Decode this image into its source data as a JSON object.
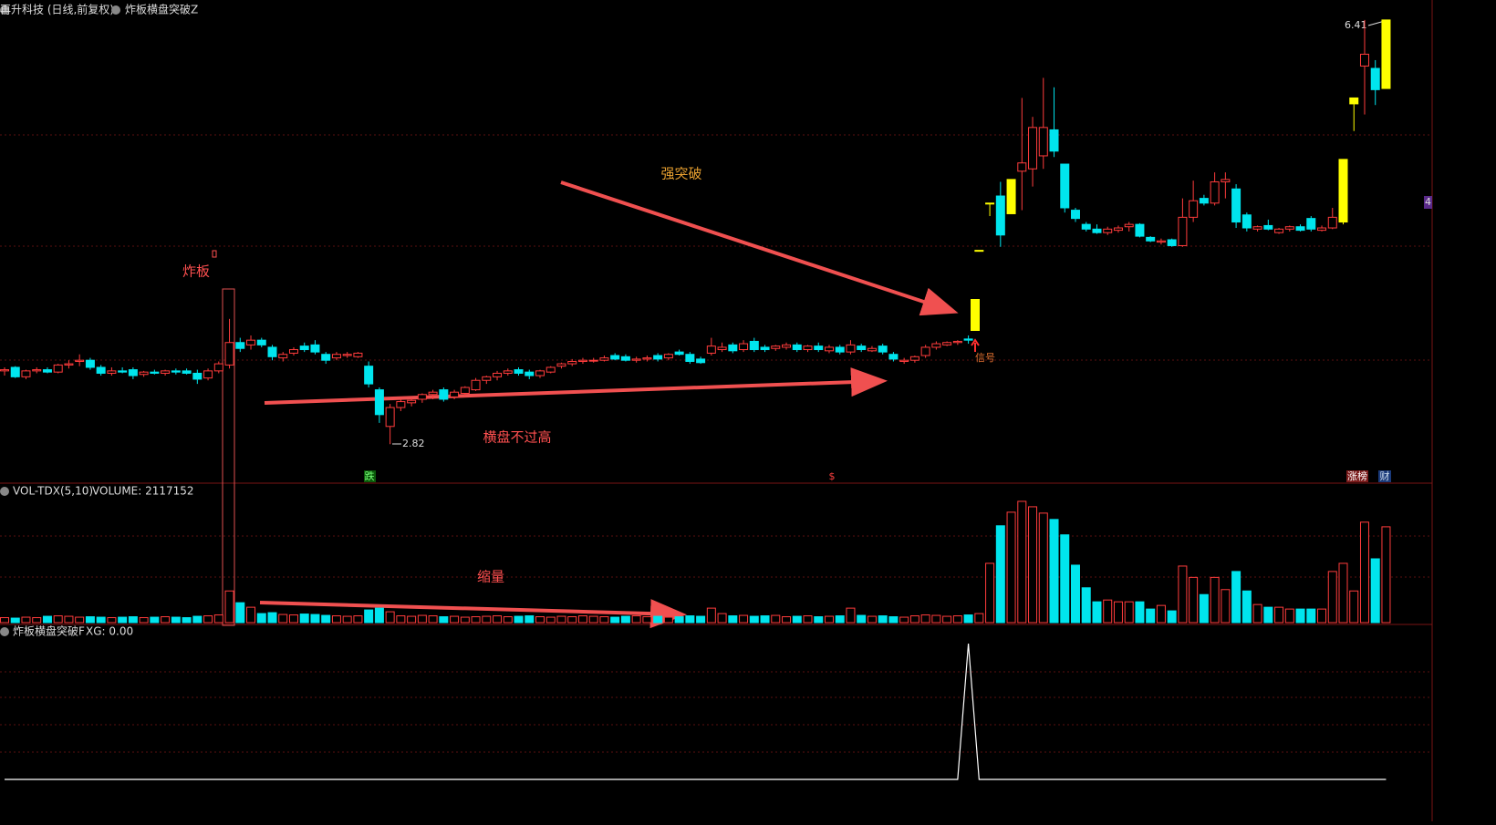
{
  "chart_data": [
    {
      "type": "candlestick",
      "title": "再升科技 (日线,前复权)",
      "indicator": "炸板横盘突破Z",
      "up_color": "#ff3c3c",
      "down_color": "#00e5ee",
      "limit_color": "#ffff00",
      "limit_days": [
        91,
        92,
        94,
        125,
        126,
        129
      ],
      "ylim": [
        2.49,
        6.44
      ],
      "high_label": 6.41,
      "low_label": 2.82,
      "right_tag": "4",
      "annotations": [
        "强突破",
        "炸板",
        "横盘不过高",
        "信号"
      ],
      "markers": [
        "跌",
        "$",
        "涨榜",
        "财"
      ],
      "ohlc": [
        [
          3.44,
          3.47,
          3.4,
          3.45
        ],
        [
          3.47,
          3.48,
          3.38,
          3.39
        ],
        [
          3.39,
          3.45,
          3.37,
          3.44
        ],
        [
          3.44,
          3.47,
          3.42,
          3.45
        ],
        [
          3.45,
          3.47,
          3.42,
          3.43
        ],
        [
          3.43,
          3.5,
          3.42,
          3.49
        ],
        [
          3.49,
          3.53,
          3.46,
          3.5
        ],
        [
          3.52,
          3.58,
          3.48,
          3.53
        ],
        [
          3.53,
          3.55,
          3.45,
          3.47
        ],
        [
          3.47,
          3.49,
          3.4,
          3.42
        ],
        [
          3.42,
          3.47,
          3.4,
          3.44
        ],
        [
          3.44,
          3.47,
          3.42,
          3.43
        ],
        [
          3.45,
          3.47,
          3.37,
          3.4
        ],
        [
          3.41,
          3.44,
          3.39,
          3.43
        ],
        [
          3.43,
          3.45,
          3.41,
          3.42
        ],
        [
          3.42,
          3.45,
          3.4,
          3.44
        ],
        [
          3.44,
          3.46,
          3.41,
          3.43
        ],
        [
          3.44,
          3.46,
          3.41,
          3.42
        ],
        [
          3.42,
          3.45,
          3.33,
          3.37
        ],
        [
          3.38,
          3.46,
          3.36,
          3.44
        ],
        [
          3.44,
          3.52,
          3.42,
          3.5
        ],
        [
          3.49,
          3.88,
          3.46,
          3.68
        ],
        [
          3.68,
          3.72,
          3.6,
          3.63
        ],
        [
          3.66,
          3.74,
          3.62,
          3.7
        ],
        [
          3.7,
          3.72,
          3.64,
          3.66
        ],
        [
          3.64,
          3.66,
          3.53,
          3.56
        ],
        [
          3.55,
          3.6,
          3.52,
          3.58
        ],
        [
          3.59,
          3.64,
          3.57,
          3.62
        ],
        [
          3.65,
          3.68,
          3.6,
          3.62
        ],
        [
          3.66,
          3.7,
          3.58,
          3.6
        ],
        [
          3.58,
          3.6,
          3.5,
          3.53
        ],
        [
          3.55,
          3.6,
          3.53,
          3.58
        ],
        [
          3.57,
          3.6,
          3.55,
          3.58
        ],
        [
          3.56,
          3.6,
          3.55,
          3.59
        ],
        [
          3.48,
          3.52,
          3.3,
          3.33
        ],
        [
          3.28,
          3.3,
          3.0,
          3.07
        ],
        [
          2.97,
          3.16,
          2.82,
          3.13
        ],
        [
          3.13,
          3.2,
          3.1,
          3.18
        ],
        [
          3.17,
          3.21,
          3.14,
          3.19
        ],
        [
          3.2,
          3.25,
          3.17,
          3.24
        ],
        [
          3.24,
          3.28,
          3.2,
          3.26
        ],
        [
          3.28,
          3.3,
          3.18,
          3.2
        ],
        [
          3.22,
          3.28,
          3.2,
          3.26
        ],
        [
          3.25,
          3.31,
          3.23,
          3.3
        ],
        [
          3.28,
          3.38,
          3.27,
          3.36
        ],
        [
          3.36,
          3.4,
          3.33,
          3.39
        ],
        [
          3.39,
          3.44,
          3.36,
          3.42
        ],
        [
          3.42,
          3.46,
          3.4,
          3.44
        ],
        [
          3.45,
          3.47,
          3.4,
          3.42
        ],
        [
          3.43,
          3.45,
          3.37,
          3.4
        ],
        [
          3.4,
          3.45,
          3.38,
          3.44
        ],
        [
          3.43,
          3.48,
          3.42,
          3.47
        ],
        [
          3.48,
          3.51,
          3.46,
          3.5
        ],
        [
          3.5,
          3.54,
          3.48,
          3.52
        ],
        [
          3.52,
          3.55,
          3.5,
          3.53
        ],
        [
          3.53,
          3.55,
          3.51,
          3.53
        ],
        [
          3.53,
          3.57,
          3.52,
          3.55
        ],
        [
          3.57,
          3.59,
          3.53,
          3.54
        ],
        [
          3.56,
          3.58,
          3.52,
          3.53
        ],
        [
          3.53,
          3.56,
          3.51,
          3.54
        ],
        [
          3.54,
          3.57,
          3.52,
          3.55
        ],
        [
          3.57,
          3.59,
          3.52,
          3.54
        ],
        [
          3.55,
          3.59,
          3.53,
          3.58
        ],
        [
          3.6,
          3.62,
          3.57,
          3.58
        ],
        [
          3.58,
          3.6,
          3.5,
          3.52
        ],
        [
          3.54,
          3.56,
          3.5,
          3.51
        ],
        [
          3.59,
          3.72,
          3.57,
          3.65
        ],
        [
          3.62,
          3.68,
          3.6,
          3.64
        ],
        [
          3.66,
          3.68,
          3.59,
          3.61
        ],
        [
          3.62,
          3.7,
          3.6,
          3.67
        ],
        [
          3.69,
          3.72,
          3.6,
          3.62
        ],
        [
          3.64,
          3.66,
          3.6,
          3.62
        ],
        [
          3.63,
          3.66,
          3.61,
          3.65
        ],
        [
          3.64,
          3.68,
          3.62,
          3.66
        ],
        [
          3.66,
          3.68,
          3.6,
          3.62
        ],
        [
          3.62,
          3.66,
          3.6,
          3.65
        ],
        [
          3.65,
          3.68,
          3.6,
          3.62
        ],
        [
          3.61,
          3.66,
          3.59,
          3.64
        ],
        [
          3.64,
          3.66,
          3.58,
          3.6
        ],
        [
          3.6,
          3.7,
          3.58,
          3.66
        ],
        [
          3.65,
          3.67,
          3.6,
          3.62
        ],
        [
          3.61,
          3.65,
          3.6,
          3.63
        ],
        [
          3.65,
          3.67,
          3.58,
          3.6
        ],
        [
          3.58,
          3.6,
          3.52,
          3.54
        ],
        [
          3.52,
          3.55,
          3.5,
          3.53
        ],
        [
          3.53,
          3.57,
          3.51,
          3.56
        ],
        [
          3.57,
          3.66,
          3.55,
          3.64
        ],
        [
          3.64,
          3.69,
          3.62,
          3.67
        ],
        [
          3.66,
          3.69,
          3.65,
          3.68
        ],
        [
          3.68,
          3.7,
          3.66,
          3.69
        ],
        [
          3.71,
          3.74,
          3.67,
          3.7
        ],
        [
          4.46,
          4.46,
          4.46,
          4.46
        ],
        [
          4.86,
          4.86,
          4.75,
          4.86
        ],
        [
          4.92,
          5.04,
          4.49,
          4.59
        ],
        [
          4.77,
          5.06,
          4.77,
          5.06
        ],
        [
          5.13,
          5.75,
          4.8,
          5.2
        ],
        [
          5.15,
          5.59,
          5.0,
          5.5
        ],
        [
          5.26,
          5.92,
          5.15,
          5.5
        ],
        [
          5.48,
          5.84,
          5.25,
          5.3
        ],
        [
          5.19,
          5.19,
          4.78,
          4.82
        ],
        [
          4.8,
          4.82,
          4.7,
          4.73
        ],
        [
          4.68,
          4.7,
          4.62,
          4.64
        ],
        [
          4.64,
          4.68,
          4.6,
          4.61
        ],
        [
          4.61,
          4.66,
          4.59,
          4.64
        ],
        [
          4.63,
          4.67,
          4.61,
          4.65
        ],
        [
          4.66,
          4.7,
          4.62,
          4.68
        ],
        [
          4.68,
          4.69,
          4.57,
          4.58
        ],
        [
          4.57,
          4.58,
          4.53,
          4.54
        ],
        [
          4.53,
          4.56,
          4.51,
          4.54
        ],
        [
          4.55,
          4.56,
          4.49,
          4.5
        ],
        [
          4.5,
          4.9,
          4.49,
          4.74
        ],
        [
          4.74,
          5.05,
          4.7,
          4.88
        ],
        [
          4.9,
          4.93,
          4.84,
          4.86
        ],
        [
          4.86,
          5.12,
          4.84,
          5.04
        ],
        [
          5.04,
          5.12,
          4.9,
          5.06
        ],
        [
          4.98,
          5.02,
          4.65,
          4.7
        ],
        [
          4.76,
          4.78,
          4.62,
          4.65
        ],
        [
          4.64,
          4.67,
          4.62,
          4.66
        ],
        [
          4.67,
          4.72,
          4.63,
          4.64
        ],
        [
          4.61,
          4.65,
          4.6,
          4.64
        ],
        [
          4.64,
          4.67,
          4.62,
          4.66
        ],
        [
          4.66,
          4.68,
          4.62,
          4.63
        ],
        [
          4.73,
          4.75,
          4.62,
          4.64
        ],
        [
          4.63,
          4.67,
          4.62,
          4.65
        ],
        [
          4.65,
          4.82,
          4.64,
          4.74
        ],
        [
          4.7,
          5.23,
          4.68,
          5.23
        ],
        [
          5.7,
          5.75,
          5.47,
          5.75
        ],
        [
          6.02,
          6.41,
          5.61,
          6.12
        ],
        [
          6.0,
          6.07,
          5.69,
          5.82
        ],
        [
          5.83,
          6.41,
          5.83,
          6.41
        ]
      ]
    },
    {
      "type": "volume",
      "title": "VOL-TDX(5,10)",
      "value_text": "VOLUME: 2117152",
      "annotation": "缩量",
      "ylim": [
        0,
        2780000
      ],
      "values": [
        110000,
        100000,
        120000,
        110000,
        140000,
        150000,
        140000,
        120000,
        130000,
        120000,
        110000,
        120000,
        130000,
        110000,
        120000,
        130000,
        120000,
        110000,
        140000,
        150000,
        170000,
        700000,
        440000,
        340000,
        200000,
        220000,
        180000,
        170000,
        190000,
        180000,
        160000,
        150000,
        140000,
        150000,
        280000,
        320000,
        240000,
        150000,
        140000,
        160000,
        150000,
        130000,
        140000,
        120000,
        130000,
        140000,
        150000,
        130000,
        140000,
        150000,
        130000,
        120000,
        140000,
        130000,
        150000,
        140000,
        130000,
        120000,
        140000,
        150000,
        130000,
        140000,
        120000,
        130000,
        150000,
        140000,
        320000,
        200000,
        150000,
        160000,
        140000,
        150000,
        160000,
        130000,
        140000,
        150000,
        130000,
        140000,
        150000,
        320000,
        160000,
        140000,
        150000,
        130000,
        120000,
        150000,
        170000,
        160000,
        140000,
        150000,
        170000,
        200000,
        1310000,
        2140000,
        2440000,
        2680000,
        2560000,
        2420000,
        2280000,
        1940000,
        1270000,
        770000,
        460000,
        500000,
        460000,
        460000,
        460000,
        300000,
        380000,
        260000,
        1250000,
        1000000,
        620000,
        1000000,
        730000,
        1130000,
        700000,
        400000,
        340000,
        340000,
        300000,
        300000,
        300000,
        300000,
        1130000,
        1310000,
        700000,
        2220000,
        1410000,
        2117152
      ]
    },
    {
      "type": "line",
      "title": "炸板横盘突破F",
      "value_text": "XG: 0.00",
      "color": "#ffffff",
      "ylim": [
        0,
        1
      ],
      "values": [
        0,
        0,
        0,
        0,
        0,
        0,
        0,
        0,
        0,
        0,
        0,
        0,
        0,
        0,
        0,
        0,
        0,
        0,
        0,
        0,
        0,
        0,
        0,
        0,
        0,
        0,
        0,
        0,
        0,
        0,
        0,
        0,
        0,
        0,
        0,
        0,
        0,
        0,
        0,
        0,
        0,
        0,
        0,
        0,
        0,
        0,
        0,
        0,
        0,
        0,
        0,
        0,
        0,
        0,
        0,
        0,
        0,
        0,
        0,
        0,
        0,
        0,
        0,
        0,
        0,
        0,
        0,
        0,
        0,
        0,
        0,
        0,
        0,
        0,
        0,
        0,
        0,
        0,
        0,
        0,
        0,
        0,
        0,
        0,
        0,
        0,
        0,
        0,
        0,
        0,
        1,
        0,
        0,
        0,
        0,
        0,
        0,
        0,
        0,
        0,
        0,
        0,
        0,
        0,
        0,
        0,
        0,
        0,
        0,
        0,
        0,
        0,
        0,
        0,
        0,
        0,
        0,
        0,
        0,
        0,
        0,
        0,
        0,
        0,
        0,
        0,
        0,
        0,
        0,
        0
      ]
    }
  ]
}
